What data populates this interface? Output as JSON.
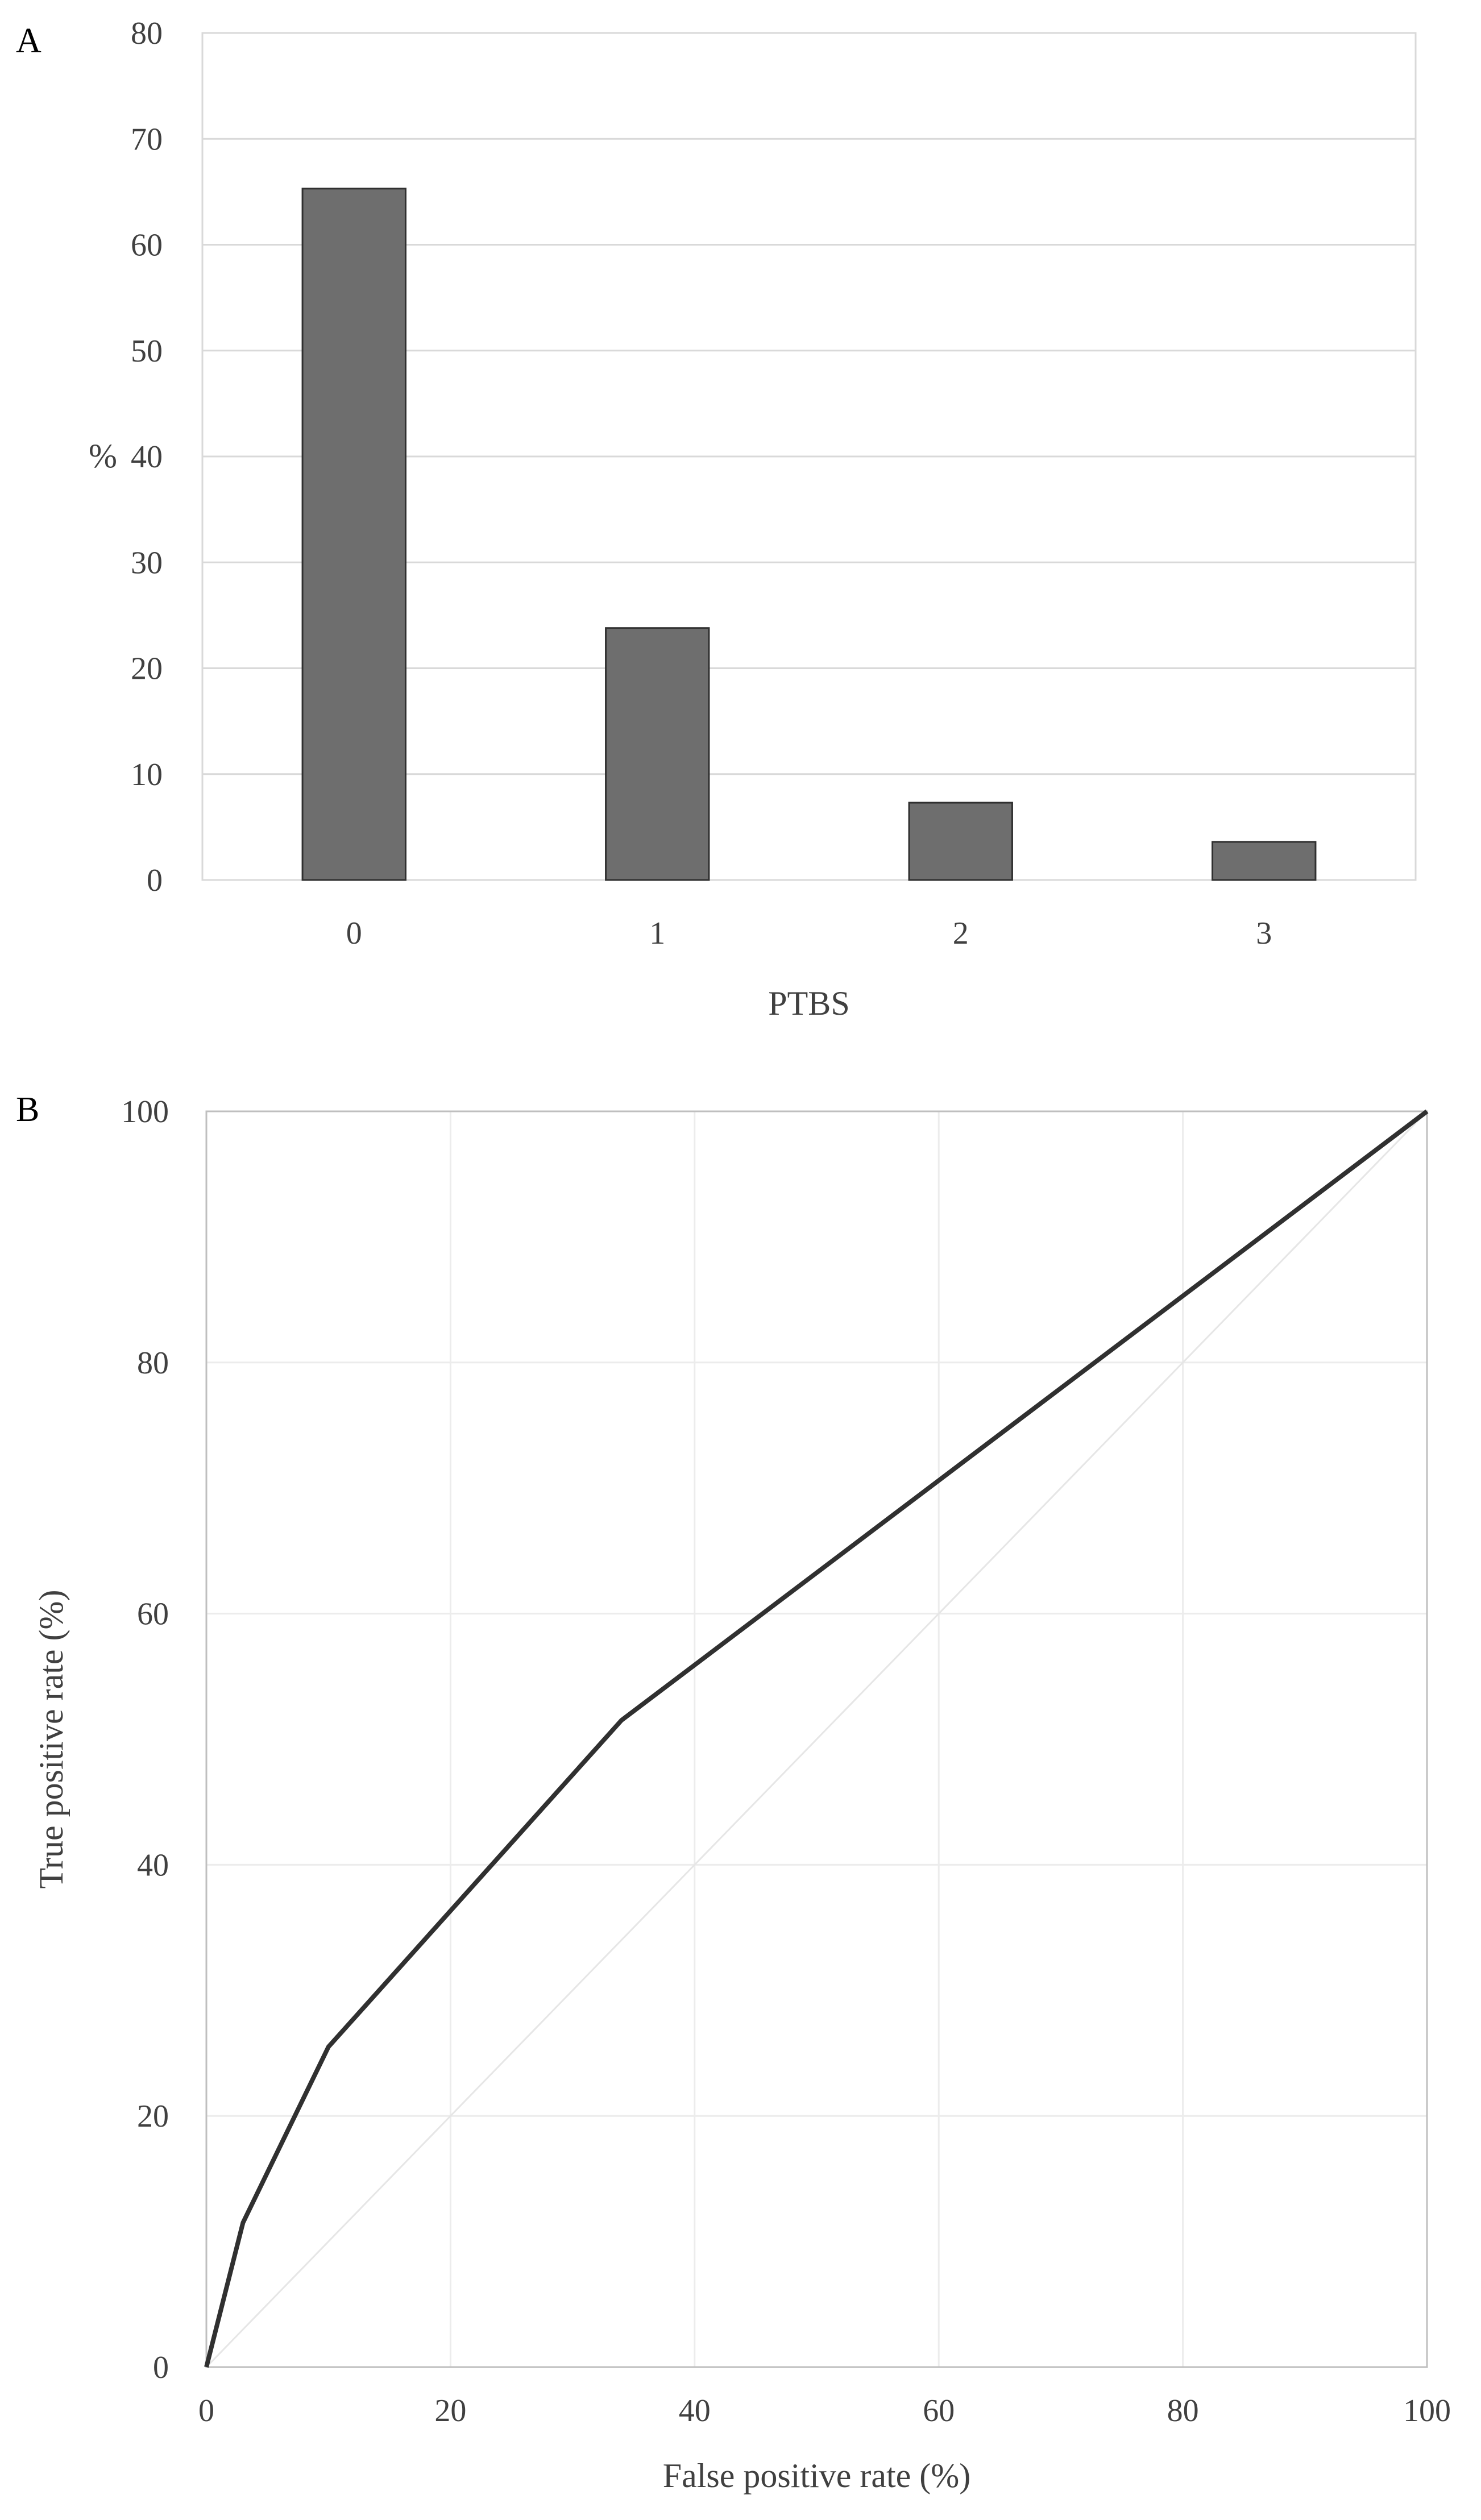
{
  "figure": {
    "panels": [
      {
        "letter": "A"
      },
      {
        "letter": "B"
      }
    ]
  },
  "chart_data": [
    {
      "type": "bar",
      "panel": "A",
      "categories": [
        "0",
        "1",
        "2",
        "3"
      ],
      "values": [
        65.3,
        23.8,
        7.3,
        3.6
      ],
      "xlabel": "PTBS",
      "ylabel": "%",
      "ylim": [
        0,
        80
      ],
      "yticks": [
        "0",
        "10",
        "20",
        "30",
        "40",
        "50",
        "60",
        "70",
        "80"
      ],
      "grid": true,
      "colors": {
        "bar_fill": "#6e6e6e",
        "bar_stroke": "#303030",
        "grid": "#d9d9d9"
      }
    },
    {
      "type": "line",
      "panel": "B",
      "series": [
        {
          "x": [
            0,
            3,
            10,
            34,
            100
          ],
          "y": [
            0,
            11.5,
            25.5,
            51.5,
            100
          ]
        },
        {
          "x": [
            0,
            100
          ],
          "y": [
            0,
            100
          ]
        }
      ],
      "xlabel": "False positive rate (%)",
      "ylabel": "True positive rate (%)",
      "xlim": [
        0,
        100
      ],
      "ylim": [
        0,
        100
      ],
      "xticks": [
        "0",
        "20",
        "40",
        "60",
        "80",
        "100"
      ],
      "yticks": [
        "0",
        "20",
        "40",
        "60",
        "80",
        "100"
      ],
      "grid": true,
      "colors": {
        "roc_line": "#303030",
        "reference_line": "#e6e6e6",
        "grid": "#ececec"
      }
    }
  ]
}
